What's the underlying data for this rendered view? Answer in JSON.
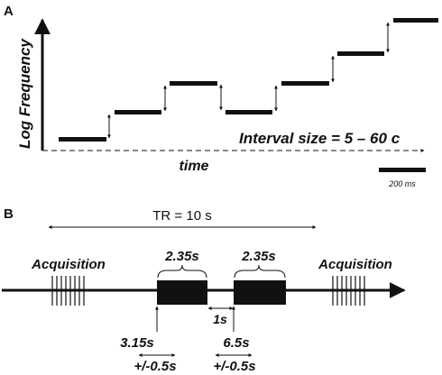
{
  "panelA": {
    "label": "A",
    "ylabel": "Log Frequency",
    "xlabel": "time",
    "interval_text": "Interval size = 5 – 60 c",
    "scale_text": "200 ms"
  },
  "panelB": {
    "label": "B",
    "tr_text": "TR = 10 s",
    "acq_left": "Acquisition",
    "acq_right": "Acquisition",
    "dur1": "2.35s",
    "dur2": "2.35s",
    "gap": "1s",
    "onset1": "3.15s",
    "jitter1": "+/-0.5s",
    "onset2": "6.5s",
    "jitter2": "+/-0.5s"
  }
}
